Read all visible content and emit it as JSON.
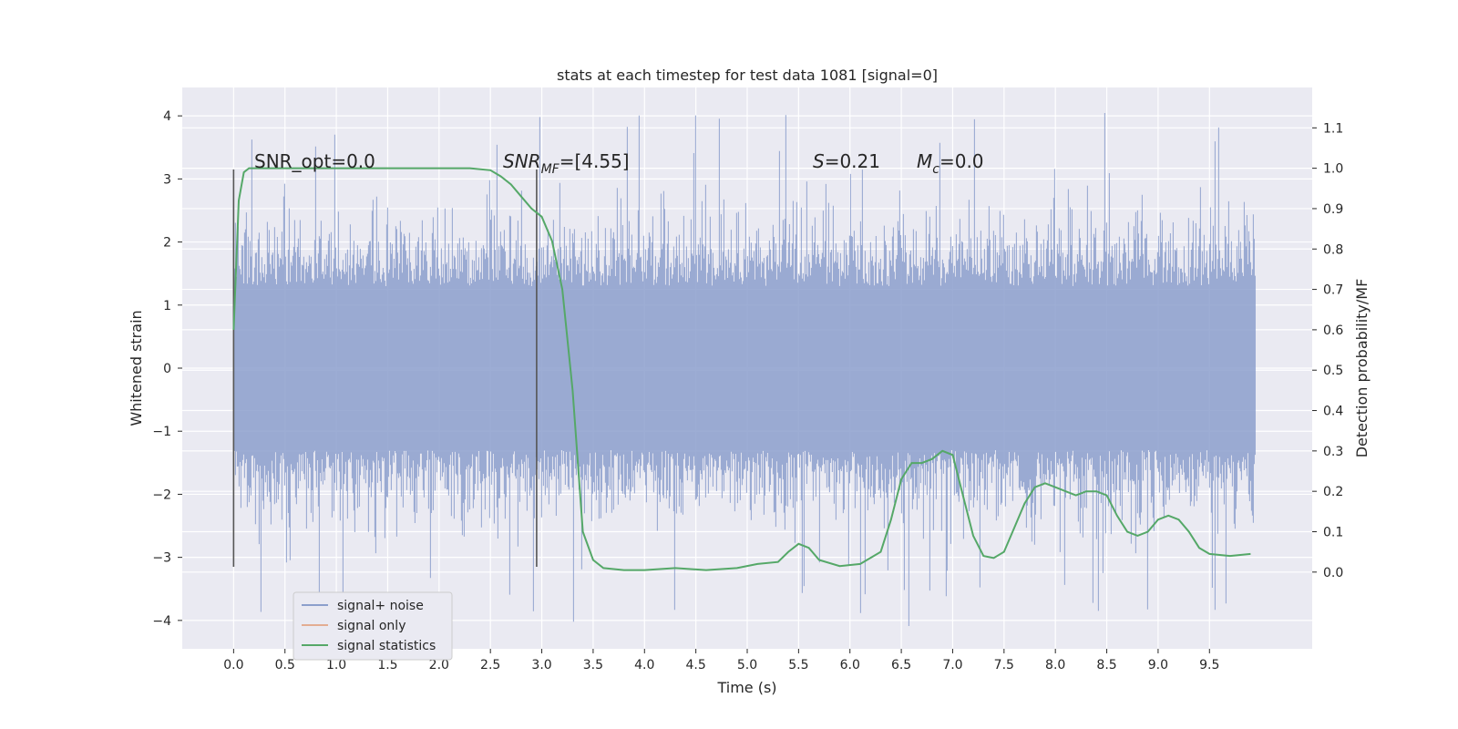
{
  "chart_data": {
    "type": "line",
    "title": "stats at each timestep for test data 1081 [signal=0]",
    "xlabel": "Time (s)",
    "ylabel": "Whitened strain",
    "y2label": "Detection probability/MF",
    "xlim": [
      -0.5,
      10.5
    ],
    "ylim": [
      -4.45,
      4.45
    ],
    "y2lim": [
      -0.19,
      1.2
    ],
    "xticks": [
      "0.0",
      "0.5",
      "1.0",
      "1.5",
      "2.0",
      "2.5",
      "3.0",
      "3.5",
      "4.0",
      "4.5",
      "5.0",
      "5.5",
      "6.0",
      "6.5",
      "7.0",
      "7.5",
      "8.0",
      "8.5",
      "9.0",
      "9.5"
    ],
    "yticks": [
      "4",
      "3",
      "2",
      "1",
      "0",
      "−1",
      "−2",
      "−3",
      "−4"
    ],
    "y2ticks": [
      "1.1",
      "1.0",
      "0.9",
      "0.8",
      "0.7",
      "0.6",
      "0.5",
      "0.4",
      "0.3",
      "0.2",
      "0.1",
      "0.0"
    ],
    "grid": true,
    "legend_position": "bottom-left",
    "annotations": {
      "snr_opt": "SNR_opt=0.0",
      "snr_mf_base": "SNR",
      "snr_mf_sub": "MF",
      "snr_mf_value": "=[4.55]",
      "s_base": "S",
      "s_value": "=0.21",
      "mc_base": "M",
      "mc_sub": "c",
      "mc_value": "=0.0"
    },
    "vertical_lines": [
      0.0,
      2.95
    ],
    "noise_envelope": {
      "x_start": 0.0,
      "x_end": 9.95,
      "typical_min": -2.6,
      "typical_max": 2.6,
      "extreme_min": -4.1,
      "extreme_max": 4.05
    },
    "series": [
      {
        "name": "signal+ noise",
        "color": "#8c9fcc",
        "values": []
      },
      {
        "name": "signal only",
        "color": "#dd8452",
        "values": []
      },
      {
        "name": "signal statistics",
        "color": "#55a868",
        "axis": "right",
        "x": [
          0.0,
          0.05,
          0.1,
          0.15,
          0.3,
          0.5,
          1.0,
          1.5,
          2.0,
          2.3,
          2.5,
          2.6,
          2.7,
          2.8,
          2.9,
          3.0,
          3.1,
          3.2,
          3.3,
          3.4,
          3.5,
          3.6,
          3.8,
          4.0,
          4.3,
          4.6,
          4.9,
          5.1,
          5.3,
          5.4,
          5.5,
          5.6,
          5.7,
          5.9,
          6.1,
          6.3,
          6.4,
          6.5,
          6.6,
          6.7,
          6.8,
          6.9,
          7.0,
          7.1,
          7.2,
          7.3,
          7.4,
          7.5,
          7.6,
          7.7,
          7.8,
          7.9,
          8.0,
          8.1,
          8.2,
          8.3,
          8.4,
          8.5,
          8.6,
          8.7,
          8.8,
          8.9,
          9.0,
          9.1,
          9.2,
          9.3,
          9.4,
          9.5,
          9.7,
          9.9
        ],
        "values": [
          0.6,
          0.92,
          0.99,
          1.0,
          1.0,
          1.0,
          1.0,
          1.0,
          1.0,
          1.0,
          0.995,
          0.98,
          0.96,
          0.93,
          0.9,
          0.88,
          0.82,
          0.7,
          0.45,
          0.1,
          0.03,
          0.01,
          0.005,
          0.005,
          0.01,
          0.005,
          0.01,
          0.02,
          0.025,
          0.05,
          0.07,
          0.06,
          0.03,
          0.015,
          0.02,
          0.05,
          0.13,
          0.23,
          0.27,
          0.27,
          0.28,
          0.3,
          0.29,
          0.19,
          0.09,
          0.04,
          0.035,
          0.05,
          0.11,
          0.17,
          0.21,
          0.22,
          0.21,
          0.2,
          0.19,
          0.2,
          0.2,
          0.19,
          0.14,
          0.1,
          0.09,
          0.1,
          0.13,
          0.14,
          0.13,
          0.1,
          0.06,
          0.045,
          0.04,
          0.045
        ]
      }
    ]
  }
}
